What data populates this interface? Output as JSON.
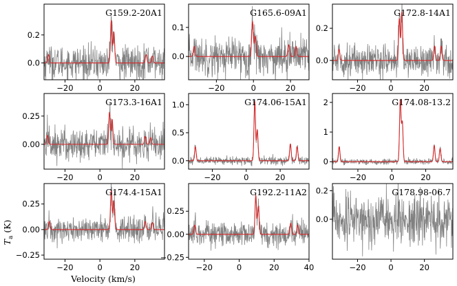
{
  "figure": {
    "ylabel": "T_a (K)",
    "ylabel_main": "T",
    "ylabel_sub": "a",
    "ylabel_unit": " (K)",
    "xlabel": "Velocity (km/s)"
  },
  "chart_data": [
    {
      "type": "line",
      "title": "G159.2-20A1",
      "xlim": [
        -32,
        37
      ],
      "ylim": [
        -0.12,
        0.42
      ],
      "xticks": [
        -20,
        0,
        20
      ],
      "yticks": [
        0.0,
        0.2
      ],
      "ytick_labels": [
        "0.0",
        "0.2"
      ],
      "noise_sigma": 0.06,
      "series": [
        {
          "color": "#808080",
          "role": "observed"
        },
        {
          "color": "#d62728",
          "role": "model",
          "lines": [
            {
              "center": -29.5,
              "amp": 0.06
            },
            {
              "center": 6.5,
              "amp": 0.3
            },
            {
              "center": 8.0,
              "amp": 0.22
            },
            {
              "center": 26.5,
              "amp": 0.06
            },
            {
              "center": 30.0,
              "amp": 0.05
            }
          ]
        }
      ]
    },
    {
      "type": "line",
      "title": "G165.6-09A1",
      "xlim": [
        -35,
        30
      ],
      "ylim": [
        -0.08,
        0.18
      ],
      "xticks": [
        -20,
        0,
        20
      ],
      "yticks": [
        0.0,
        0.1
      ],
      "ytick_labels": [
        "0.0",
        "0.1"
      ],
      "noise_sigma": 0.033,
      "series": [
        {
          "color": "#808080",
          "role": "observed"
        },
        {
          "color": "#d62728",
          "role": "model",
          "lines": [
            {
              "center": -32.0,
              "amp": 0.035
            },
            {
              "center": -0.5,
              "amp": 0.12
            },
            {
              "center": 1.0,
              "amp": 0.07
            },
            {
              "center": 19.0,
              "amp": 0.04
            },
            {
              "center": 23.0,
              "amp": 0.035
            }
          ]
        }
      ]
    },
    {
      "type": "line",
      "title": "G172.8-14A1",
      "xlim": [
        -35,
        37
      ],
      "ylim": [
        -0.12,
        0.35
      ],
      "xticks": [
        -20,
        0,
        20
      ],
      "yticks": [
        0.0,
        0.2
      ],
      "ytick_labels": [
        "0.0",
        "0.2"
      ],
      "noise_sigma": 0.05,
      "series": [
        {
          "color": "#808080",
          "role": "observed"
        },
        {
          "color": "#d62728",
          "role": "model",
          "lines": [
            {
              "center": -31.0,
              "amp": 0.07
            },
            {
              "center": 5.0,
              "amp": 0.26
            },
            {
              "center": 6.5,
              "amp": 0.3
            },
            {
              "center": 26.0,
              "amp": 0.09
            },
            {
              "center": 30.0,
              "amp": 0.09
            }
          ]
        }
      ]
    },
    {
      "type": "line",
      "title": "G173.3-16A1",
      "xlim": [
        -32,
        37
      ],
      "ylim": [
        -0.22,
        0.45
      ],
      "xticks": [
        -20,
        0,
        20
      ],
      "yticks": [
        0.0,
        0.25
      ],
      "ytick_labels": [
        "0.00",
        "0.25"
      ],
      "noise_sigma": 0.075,
      "series": [
        {
          "color": "#808080",
          "role": "observed"
        },
        {
          "color": "#d62728",
          "role": "model",
          "lines": [
            {
              "center": -30.0,
              "amp": 0.08
            },
            {
              "center": 5.5,
              "amp": 0.28
            },
            {
              "center": 7.0,
              "amp": 0.22
            },
            {
              "center": 26.0,
              "amp": 0.07
            },
            {
              "center": 29.0,
              "amp": 0.06
            }
          ]
        }
      ]
    },
    {
      "type": "line",
      "title": "G174.06-15A1",
      "xlim": [
        -34,
        37
      ],
      "ylim": [
        -0.15,
        1.2
      ],
      "xticks": [
        -20,
        0,
        20
      ],
      "yticks": [
        0.0,
        0.5,
        1.0
      ],
      "ytick_labels": [
        "0.0",
        "0.5",
        "1.0"
      ],
      "noise_sigma": 0.035,
      "series": [
        {
          "color": "#808080",
          "role": "observed"
        },
        {
          "color": "#d62728",
          "role": "model",
          "lines": [
            {
              "center": -30.0,
              "amp": 0.25
            },
            {
              "center": 5.0,
              "amp": 1.05
            },
            {
              "center": 6.5,
              "amp": 0.55
            },
            {
              "center": 26.0,
              "amp": 0.3
            },
            {
              "center": 30.0,
              "amp": 0.25
            }
          ]
        }
      ]
    },
    {
      "type": "line",
      "title": "G174.08-13.2",
      "xlim": [
        -35,
        36
      ],
      "ylim": [
        -0.25,
        2.3
      ],
      "xticks": [
        -20,
        0,
        20
      ],
      "yticks": [
        0,
        1,
        2
      ],
      "ytick_labels": [
        "0",
        "1",
        "2"
      ],
      "noise_sigma": 0.05,
      "series": [
        {
          "color": "#808080",
          "role": "observed"
        },
        {
          "color": "#d62728",
          "role": "model",
          "lines": [
            {
              "center": -31.0,
              "amp": 0.5
            },
            {
              "center": 5.0,
              "amp": 2.05
            },
            {
              "center": 6.2,
              "amp": 1.3
            },
            {
              "center": 25.0,
              "amp": 0.55
            },
            {
              "center": 28.5,
              "amp": 0.45
            }
          ]
        }
      ]
    },
    {
      "type": "line",
      "title": "G174.4-15A1",
      "xlim": [
        -32,
        37
      ],
      "ylim": [
        -0.29,
        0.45
      ],
      "xticks": [
        -20,
        0,
        20
      ],
      "yticks": [
        -0.25,
        0.0,
        0.25
      ],
      "ytick_labels": [
        "−0.25",
        "0.00",
        "0.25"
      ],
      "noise_sigma": 0.065,
      "series": [
        {
          "color": "#808080",
          "role": "observed"
        },
        {
          "color": "#d62728",
          "role": "model",
          "lines": [
            {
              "center": -29.0,
              "amp": 0.08
            },
            {
              "center": 6.5,
              "amp": 0.38
            },
            {
              "center": 8.0,
              "amp": 0.28
            },
            {
              "center": 26.0,
              "amp": 0.08
            },
            {
              "center": 30.0,
              "amp": 0.07
            }
          ]
        }
      ]
    },
    {
      "type": "line",
      "title": "G192.2-11A2",
      "xlim": [
        -29,
        40
      ],
      "ylim": [
        -0.27,
        0.55
      ],
      "xticks": [
        -20,
        0,
        20,
        40
      ],
      "yticks": [
        -0.25,
        0.0,
        0.25
      ],
      "ytick_labels": [
        "−0.25",
        "0.00",
        "0.25"
      ],
      "noise_sigma": 0.07,
      "series": [
        {
          "color": "#808080",
          "role": "observed"
        },
        {
          "color": "#d62728",
          "role": "model",
          "lines": [
            {
              "center": -25.5,
              "amp": 0.1
            },
            {
              "center": 9.5,
              "amp": 0.42
            },
            {
              "center": 11.0,
              "amp": 0.3
            },
            {
              "center": 29.5,
              "amp": 0.12
            },
            {
              "center": 33.5,
              "amp": 0.1
            }
          ]
        }
      ]
    },
    {
      "type": "line",
      "title": "G178.98-06.7",
      "xlim": [
        -35,
        37
      ],
      "ylim": [
        -0.28,
        0.25
      ],
      "xticks": [
        -20,
        0,
        20
      ],
      "yticks": [
        0.0,
        0.2
      ],
      "ytick_labels": [
        "0.0",
        "0.2"
      ],
      "noise_sigma": 0.09,
      "series": [
        {
          "color": "#808080",
          "role": "observed"
        },
        {
          "color": "#d62728",
          "role": "model",
          "lines": []
        }
      ]
    }
  ]
}
